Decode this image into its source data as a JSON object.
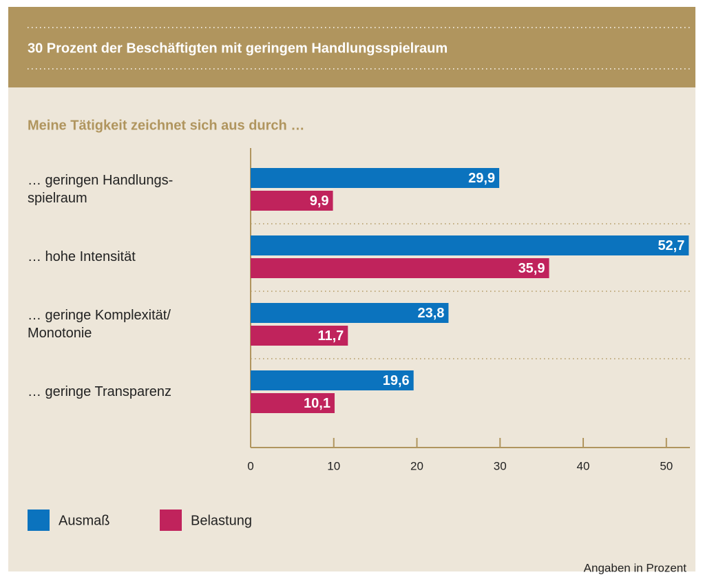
{
  "chart_data": {
    "type": "bar",
    "orientation": "horizontal",
    "title": "30 Prozent der Beschäftigten mit geringem Handlungsspielraum",
    "subtitle": "Meine Tätigkeit zeichnet sich aus durch …",
    "categories": [
      "… geringen Handlungs-\nspielraum",
      "… hohe Intensität",
      "… geringe Komplexität/\nMonotonie",
      "… geringe Transparenz"
    ],
    "series": [
      {
        "name": "Ausmaß",
        "color": "#0b73be",
        "values": [
          29.9,
          52.7,
          23.8,
          19.6
        ],
        "value_labels": [
          "29,9",
          "52,7",
          "23,8",
          "19,6"
        ]
      },
      {
        "name": "Belastung",
        "color": "#c0235c",
        "values": [
          9.9,
          35.9,
          11.7,
          10.1
        ],
        "value_labels": [
          "9,9",
          "35,9",
          "11,7",
          "10,1"
        ]
      }
    ],
    "xlim": [
      0,
      53
    ],
    "xticks": [
      0,
      10,
      20,
      30,
      40,
      50
    ],
    "note": "Angaben in Prozent"
  }
}
